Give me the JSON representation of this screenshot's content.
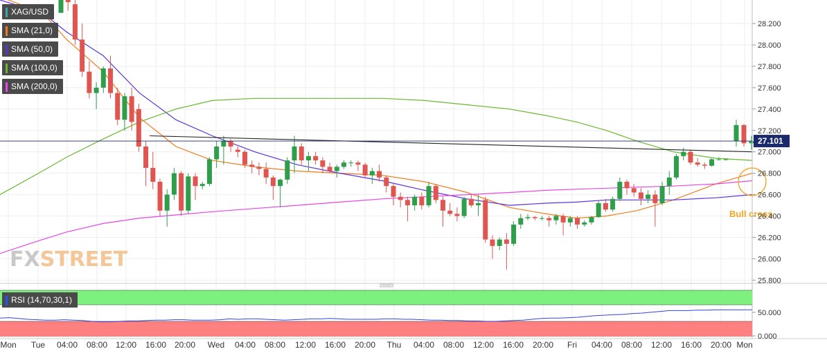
{
  "symbol": "XAG/USD",
  "legend": [
    {
      "label": "SMA (21,0)",
      "color": "#f07c1c"
    },
    {
      "label": "SMA (50,0)",
      "color": "#5a32e0"
    },
    {
      "label": "SMA (100,0)",
      "color": "#6ab82e"
    },
    {
      "label": "SMA (200,0)",
      "color": "#e646e6"
    }
  ],
  "rsi_label": "RSI (14,70,30,1)",
  "watermark": {
    "part1": "FX",
    "part2": "STREET"
  },
  "annotation": "Bull cross",
  "colors": {
    "up": "#2e9e4a",
    "down": "#e0554f",
    "accent": "#f5a623",
    "rsi_line": "#3244d9",
    "rsi_over": "#7ef07e",
    "rsi_under": "#ff8080"
  },
  "chart_data": {
    "type": "candlestick",
    "last_price": "27.101",
    "price_ticks": [
      "28.200",
      "28.000",
      "27.800",
      "27.600",
      "27.400",
      "27.200",
      "27.000",
      "26.800",
      "26.600",
      "26.400",
      "26.200",
      "26.000",
      "25.800"
    ],
    "price_tick_values": [
      28.2,
      28.0,
      27.8,
      27.6,
      27.4,
      27.2,
      27.0,
      26.8,
      26.6,
      26.4,
      26.2,
      26.0,
      25.8
    ],
    "ylim": [
      25.77,
      28.42
    ],
    "x_ticks": [
      "Mon",
      "Tue",
      "04:00",
      "08:00",
      "12:00",
      "16:00",
      "20:00",
      "Wed",
      "04:00",
      "08:00",
      "12:00",
      "16:00",
      "20:00",
      "Thu",
      "04:00",
      "08:00",
      "12:00",
      "16:00",
      "20:00",
      "Fri",
      "04:00",
      "08:00",
      "12:00",
      "16:00",
      "20:00",
      "Mon"
    ],
    "rsi_ticks": [
      "50.000",
      "0.000"
    ],
    "rsi_tick_values": [
      50,
      0
    ],
    "candles": [
      [
        28.3,
        28.5,
        28.3,
        28.45
      ],
      [
        28.45,
        28.5,
        28.32,
        28.4
      ],
      [
        28.38,
        28.44,
        28.0,
        28.05
      ],
      [
        28.05,
        28.2,
        27.7,
        27.75
      ],
      [
        27.75,
        27.85,
        27.5,
        27.55
      ],
      [
        27.55,
        27.65,
        27.4,
        27.6
      ],
      [
        27.6,
        27.8,
        27.55,
        27.78
      ],
      [
        27.78,
        27.9,
        27.5,
        27.55
      ],
      [
        27.55,
        27.6,
        27.25,
        27.3
      ],
      [
        27.3,
        27.55,
        27.2,
        27.52
      ],
      [
        27.52,
        27.6,
        27.2,
        27.28
      ],
      [
        27.4,
        27.45,
        27.0,
        27.05
      ],
      [
        27.05,
        27.1,
        26.68,
        26.85
      ],
      [
        26.85,
        27.0,
        26.65,
        26.72
      ],
      [
        26.72,
        26.75,
        26.4,
        26.45
      ],
      [
        26.45,
        26.65,
        26.3,
        26.6
      ],
      [
        26.6,
        26.85,
        26.55,
        26.8
      ],
      [
        26.8,
        26.82,
        26.4,
        26.45
      ],
      [
        26.45,
        26.8,
        26.42,
        26.77
      ],
      [
        26.77,
        26.8,
        26.55,
        26.68
      ],
      [
        26.68,
        26.72,
        26.65,
        26.7
      ],
      [
        26.7,
        26.95,
        26.68,
        26.93
      ],
      [
        26.93,
        27.1,
        26.85,
        27.05
      ],
      [
        27.05,
        27.15,
        26.88,
        27.1
      ],
      [
        27.1,
        27.12,
        27.0,
        27.05
      ],
      [
        27.02,
        27.05,
        26.95,
        27.0
      ],
      [
        27.0,
        27.02,
        26.85,
        26.88
      ],
      [
        26.88,
        26.92,
        26.8,
        26.86
      ],
      [
        26.86,
        26.9,
        26.78,
        26.84
      ],
      [
        26.84,
        26.9,
        26.7,
        26.76
      ],
      [
        26.76,
        26.78,
        26.55,
        26.68
      ],
      [
        26.68,
        26.75,
        26.48,
        26.74
      ],
      [
        26.74,
        26.95,
        26.7,
        26.92
      ],
      [
        26.92,
        27.15,
        26.8,
        27.05
      ],
      [
        27.05,
        27.08,
        26.88,
        26.92
      ],
      [
        26.92,
        27.0,
        26.82,
        26.96
      ],
      [
        26.96,
        27.0,
        26.88,
        26.92
      ],
      [
        26.92,
        26.95,
        26.8,
        26.86
      ],
      [
        26.86,
        26.9,
        26.8,
        26.82
      ],
      [
        26.82,
        26.88,
        26.76,
        26.86
      ],
      [
        26.86,
        26.92,
        26.84,
        26.9
      ],
      [
        26.9,
        26.92,
        26.86,
        26.9
      ],
      [
        26.9,
        26.92,
        26.82,
        26.88
      ],
      [
        26.88,
        26.9,
        26.75,
        26.78
      ],
      [
        26.78,
        26.85,
        26.7,
        26.82
      ],
      [
        26.82,
        26.88,
        26.72,
        26.76
      ],
      [
        26.76,
        26.78,
        26.62,
        26.68
      ],
      [
        26.68,
        26.7,
        26.5,
        26.58
      ],
      [
        26.58,
        26.62,
        26.48,
        26.55
      ],
      [
        26.55,
        26.58,
        26.35,
        26.5
      ],
      [
        26.5,
        26.6,
        26.45,
        26.58
      ],
      [
        26.58,
        26.62,
        26.46,
        26.5
      ],
      [
        26.5,
        26.72,
        26.48,
        26.68
      ],
      [
        26.68,
        26.7,
        26.52,
        26.55
      ],
      [
        26.55,
        26.58,
        26.3,
        26.45
      ],
      [
        26.45,
        26.52,
        26.4,
        26.42
      ],
      [
        26.42,
        26.48,
        26.35,
        26.4
      ],
      [
        26.4,
        26.58,
        26.38,
        26.56
      ],
      [
        26.56,
        26.6,
        26.48,
        26.5
      ],
      [
        26.5,
        26.6,
        26.4,
        26.52
      ],
      [
        26.55,
        26.58,
        26.15,
        26.18
      ],
      [
        26.18,
        26.22,
        26.0,
        26.12
      ],
      [
        26.12,
        26.2,
        26.08,
        26.18
      ],
      [
        26.18,
        26.24,
        25.9,
        26.14
      ],
      [
        26.14,
        26.35,
        26.12,
        26.32
      ],
      [
        26.32,
        26.42,
        26.28,
        26.38
      ],
      [
        26.38,
        26.42,
        26.36,
        26.39
      ],
      [
        26.39,
        26.4,
        26.36,
        26.38
      ],
      [
        26.38,
        26.4,
        26.36,
        26.38
      ],
      [
        26.38,
        26.4,
        26.3,
        26.36
      ],
      [
        26.36,
        26.42,
        26.32,
        26.4
      ],
      [
        26.4,
        26.42,
        26.22,
        26.34
      ],
      [
        26.34,
        26.4,
        26.3,
        26.38
      ],
      [
        26.38,
        26.4,
        26.28,
        26.32
      ],
      [
        26.32,
        26.36,
        26.3,
        26.34
      ],
      [
        26.34,
        26.4,
        26.32,
        26.39
      ],
      [
        26.39,
        26.54,
        26.38,
        26.52
      ],
      [
        26.52,
        26.56,
        26.44,
        26.46
      ],
      [
        26.46,
        26.58,
        26.44,
        26.56
      ],
      [
        26.56,
        26.76,
        26.54,
        26.72
      ],
      [
        26.72,
        26.74,
        26.6,
        26.66
      ],
      [
        26.66,
        26.7,
        26.58,
        26.62
      ],
      [
        26.62,
        26.66,
        26.5,
        26.56
      ],
      [
        26.56,
        26.64,
        26.52,
        26.6
      ],
      [
        26.6,
        26.64,
        26.3,
        26.52
      ],
      [
        26.52,
        26.72,
        26.5,
        26.68
      ],
      [
        26.68,
        26.82,
        26.6,
        26.76
      ],
      [
        26.76,
        26.98,
        26.74,
        26.96
      ],
      [
        26.96,
        27.04,
        26.92,
        27.0
      ],
      [
        27.0,
        27.02,
        26.88,
        26.9
      ],
      [
        26.9,
        26.94,
        26.86,
        26.88
      ],
      [
        26.88,
        26.9,
        26.84,
        26.87
      ],
      [
        26.87,
        26.94,
        26.86,
        26.93
      ],
      [
        26.93,
        26.95,
        26.92,
        26.93
      ],
      [
        26.93,
        26.94,
        26.92,
        26.93
      ],
      [
        27.1,
        27.3,
        27.05,
        27.25
      ],
      [
        27.25,
        27.26,
        27.05,
        27.08
      ],
      [
        27.08,
        27.15,
        27.02,
        27.1
      ]
    ],
    "sma_21": [
      [
        0,
        28.45
      ],
      [
        14,
        28.3
      ],
      [
        22,
        28.05
      ],
      [
        34,
        27.75
      ],
      [
        46,
        27.32
      ],
      [
        58,
        27.05
      ],
      [
        70,
        26.92
      ],
      [
        84,
        26.86
      ],
      [
        98,
        26.82
      ],
      [
        112,
        26.8
      ],
      [
        126,
        26.78
      ],
      [
        140,
        26.72
      ],
      [
        154,
        26.62
      ],
      [
        168,
        26.48
      ],
      [
        180,
        26.42
      ],
      [
        190,
        26.38
      ],
      [
        200,
        26.4
      ],
      [
        210,
        26.45
      ],
      [
        222,
        26.55
      ],
      [
        236,
        26.7
      ],
      [
        248,
        26.8
      ]
    ],
    "sma_50": [
      [
        0,
        28.42
      ],
      [
        14,
        28.3
      ],
      [
        22,
        28.12
      ],
      [
        34,
        27.9
      ],
      [
        46,
        27.55
      ],
      [
        58,
        27.3
      ],
      [
        70,
        27.15
      ],
      [
        84,
        27.0
      ],
      [
        98,
        26.88
      ],
      [
        112,
        26.8
      ],
      [
        126,
        26.73
      ],
      [
        140,
        26.64
      ],
      [
        154,
        26.56
      ],
      [
        168,
        26.5
      ],
      [
        180,
        26.52
      ],
      [
        190,
        26.53
      ],
      [
        200,
        26.55
      ],
      [
        210,
        26.55
      ],
      [
        222,
        26.55
      ],
      [
        236,
        26.57
      ],
      [
        248,
        26.6
      ]
    ],
    "sma_100": [
      [
        0,
        26.6
      ],
      [
        14,
        26.82
      ],
      [
        22,
        26.95
      ],
      [
        34,
        27.12
      ],
      [
        46,
        27.28
      ],
      [
        58,
        27.4
      ],
      [
        70,
        27.48
      ],
      [
        84,
        27.5
      ],
      [
        98,
        27.5
      ],
      [
        112,
        27.5
      ],
      [
        126,
        27.5
      ],
      [
        140,
        27.48
      ],
      [
        154,
        27.44
      ],
      [
        168,
        27.4
      ],
      [
        180,
        27.34
      ],
      [
        190,
        27.28
      ],
      [
        200,
        27.2
      ],
      [
        210,
        27.1
      ],
      [
        222,
        27.0
      ],
      [
        236,
        26.94
      ],
      [
        248,
        26.92
      ]
    ],
    "sma_200": [
      [
        0,
        26.05
      ],
      [
        14,
        26.18
      ],
      [
        22,
        26.25
      ],
      [
        34,
        26.33
      ],
      [
        46,
        26.38
      ],
      [
        58,
        26.41
      ],
      [
        70,
        26.44
      ],
      [
        84,
        26.47
      ],
      [
        98,
        26.5
      ],
      [
        112,
        26.53
      ],
      [
        126,
        26.56
      ],
      [
        140,
        26.58
      ],
      [
        154,
        26.6
      ],
      [
        168,
        26.62
      ],
      [
        180,
        26.64
      ],
      [
        190,
        26.65
      ],
      [
        200,
        26.66
      ],
      [
        210,
        26.67
      ],
      [
        222,
        26.68
      ],
      [
        236,
        26.7
      ],
      [
        248,
        26.73
      ]
    ],
    "trendline": [
      [
        27.15,
        27.0
      ]
    ],
    "rsi_values": [
      38,
      39,
      37,
      35,
      34,
      33,
      33,
      34,
      33,
      32,
      30,
      29,
      29,
      30,
      31,
      31,
      32,
      33,
      33,
      34,
      34,
      33,
      33,
      33,
      34,
      36,
      35,
      36,
      36,
      35,
      34,
      33,
      34,
      35,
      36,
      36,
      37,
      36,
      35,
      35,
      35,
      35,
      36,
      36,
      35,
      35,
      34,
      33,
      33,
      32,
      32,
      31,
      31,
      30,
      30,
      31,
      32,
      33,
      35,
      37,
      38,
      38,
      39,
      40,
      42,
      44,
      45,
      46,
      47,
      49,
      50,
      52,
      54,
      56,
      56,
      56,
      57,
      57,
      58,
      58,
      58,
      58,
      58
    ]
  }
}
